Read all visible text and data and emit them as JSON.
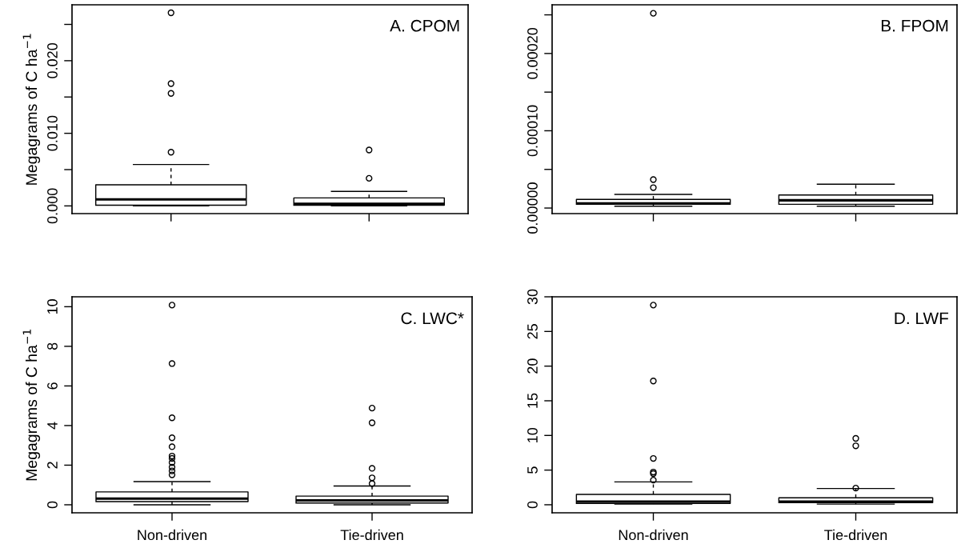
{
  "chart_data": [
    {
      "type": "box",
      "title": "A. CPOM",
      "ylabel": "Megagrams of C ha$^{−1}$",
      "categories": [
        null,
        null
      ],
      "ylim": [
        -0.00106,
        0.0277
      ],
      "yticks": [
        {
          "value": 0,
          "label": "0.000"
        },
        {
          "value": 0.005,
          "label": null
        },
        {
          "value": 0.01,
          "label": "0.010"
        },
        {
          "value": 0.015,
          "label": null
        },
        {
          "value": 0.02,
          "label": "0.020"
        },
        {
          "value": 0.025,
          "label": null
        }
      ],
      "boxes": [
        {
          "low": 0,
          "q1": 0.0001,
          "median": 0.0009,
          "q3": 0.0029,
          "high": 0.0057,
          "outliers": [
            0.0266,
            0.01685,
            0.0155,
            0.0074
          ]
        },
        {
          "low": 0,
          "q1": 0.0001,
          "median": 0.0003,
          "q3": 0.0011,
          "high": 0.002,
          "outliers": [
            0.0077,
            0.0038
          ]
        }
      ]
    },
    {
      "type": "box",
      "title": "B. FPOM",
      "categories": [
        null,
        null
      ],
      "ylim": [
        -7.2e-06,
        0.000263
      ],
      "yticks": [
        {
          "value": 0,
          "label": "0.00000"
        },
        {
          "value": 5e-05,
          "label": null
        },
        {
          "value": 0.0001,
          "label": "0.00010"
        },
        {
          "value": 0.00015,
          "label": null
        },
        {
          "value": 0.0002,
          "label": "0.00020"
        },
        {
          "value": 0.00025,
          "label": null
        }
      ],
      "boxes": [
        {
          "low": 2.4e-06,
          "q1": 4.8e-06,
          "median": 6e-06,
          "q3": 1.12e-05,
          "high": 1.76e-05,
          "outliers": [
            0.000252,
            3.68e-05,
            2.64e-05
          ]
        },
        {
          "low": 2.4e-06,
          "q1": 4.8e-06,
          "median": 1e-05,
          "q3": 1.68e-05,
          "high": 3.08e-05
        }
      ]
    },
    {
      "type": "box",
      "title": "C. LWC*",
      "ylabel": "Megagrams of C ha$^{−1}$",
      "categories": [
        "Non-driven",
        "Tie-driven"
      ],
      "ylim": [
        -0.405,
        10.5
      ],
      "yticks": [
        0,
        2,
        4,
        6,
        8,
        10
      ],
      "boxes": [
        {
          "low": 0,
          "q1": 0.16,
          "median": 0.31,
          "q3": 0.65,
          "high": 1.17,
          "outliers": [
            10.08,
            7.13,
            4.39,
            3.38,
            2.93,
            2.46,
            2.34,
            2.13,
            1.9,
            1.71,
            1.51
          ]
        },
        {
          "low": 0,
          "q1": 0.09,
          "median": 0.22,
          "q3": 0.44,
          "high": 0.95,
          "outliers": [
            4.88,
            4.14,
            1.84,
            1.36,
            1.07
          ]
        }
      ]
    },
    {
      "type": "box",
      "title": "D. LWF",
      "categories": [
        "Non-driven",
        "Tie-driven"
      ],
      "ylim": [
        -1.16,
        30
      ],
      "yticks": [
        0,
        5,
        10,
        15,
        20,
        25,
        30
      ],
      "boxes": [
        {
          "low": 0.1,
          "q1": 0.2,
          "median": 0.45,
          "q3": 1.5,
          "high": 3.3,
          "outliers": [
            28.8,
            17.85,
            6.68,
            4.72,
            4.5,
            3.56
          ]
        },
        {
          "low": 0.1,
          "q1": 0.3,
          "median": 0.45,
          "q3": 1.0,
          "high": 2.35,
          "outliers": [
            9.57,
            8.5,
            2.4
          ]
        }
      ]
    }
  ]
}
